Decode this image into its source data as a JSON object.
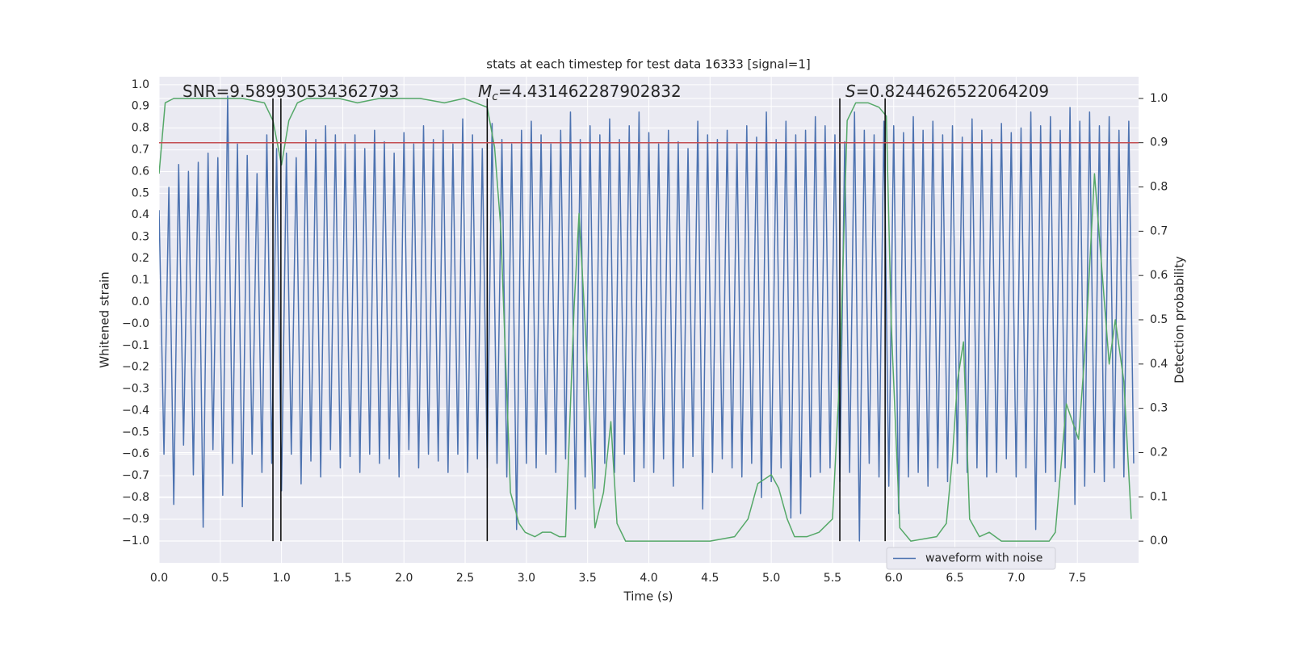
{
  "chart_data": {
    "type": "line",
    "title": "stats at each timestep for test data 16333 [signal=1]",
    "x_label": "Time (s)",
    "y_label": "Whitened strain",
    "y2_label": "Detection probability",
    "annotations": [
      {
        "text": "SNR=9.589930534362793"
      },
      {
        "symbol": "M",
        "subscript": "c",
        "text": "=4.431462287902832"
      },
      {
        "symbol": "S",
        "text": "=0.8244626522064209"
      }
    ],
    "xlim": [
      0,
      8
    ],
    "ylim": [
      -1.096,
      1.035
    ],
    "y2lim": [
      -0.049,
      1.049
    ],
    "xticks": [
      {
        "value": 0,
        "label": "0.0"
      },
      0.5,
      {
        "value": 1,
        "label": "1.0"
      },
      1.5,
      {
        "value": 2,
        "label": "2.0"
      },
      2.5,
      {
        "value": 3,
        "label": "3.0"
      },
      3.5,
      {
        "value": 4,
        "label": "4.0"
      },
      4.5,
      {
        "value": 5,
        "label": "5.0"
      },
      5.5,
      {
        "value": 6,
        "label": "6.0"
      },
      6.5,
      {
        "value": 7,
        "label": "7.0"
      },
      7.5
    ],
    "yticks": [
      {
        "value": -1.0,
        "label": "−1.0"
      },
      {
        "value": -0.905,
        "label": "−0.9"
      },
      {
        "value": -0.81,
        "label": "−0.8"
      },
      {
        "value": -0.714,
        "label": "−0.7"
      },
      {
        "value": -0.619,
        "label": "−0.6"
      },
      {
        "value": -0.524,
        "label": "−0.5"
      },
      {
        "value": -0.429,
        "label": "−0.4"
      },
      {
        "value": -0.333,
        "label": "−0.3"
      },
      {
        "value": -0.238,
        "label": "−0.2"
      },
      {
        "value": -0.143,
        "label": "−0.1"
      },
      {
        "value": -0.048,
        "label": "−0.0"
      },
      {
        "value": 0.048,
        "label": "0.0"
      },
      {
        "value": 0.143,
        "label": "0.1"
      },
      {
        "value": 0.238,
        "label": "0.2"
      },
      {
        "value": 0.333,
        "label": "0.3"
      },
      {
        "value": 0.429,
        "label": "0.4"
      },
      {
        "value": 0.524,
        "label": "0.5"
      },
      {
        "value": 0.619,
        "label": "0.6"
      },
      {
        "value": 0.714,
        "label": "0.7"
      },
      {
        "value": 0.81,
        "label": "0.8"
      },
      {
        "value": 0.905,
        "label": "0.9"
      },
      {
        "value": 1.0,
        "label": "1.0"
      }
    ],
    "y2ticks": [
      {
        "value": 0,
        "label": "0.0"
      },
      0.1,
      0.2,
      0.3,
      0.4,
      0.5,
      0.6,
      0.7,
      0.8,
      0.9,
      {
        "value": 1,
        "label": "1.0"
      }
    ],
    "grid": true,
    "legend": "lower right",
    "series": [
      {
        "name": "waveform with noise",
        "color": "#4c72b0",
        "x": [
          0,
          0.04,
          0.08,
          0.12,
          0.16,
          0.2,
          0.24,
          0.28,
          0.32,
          0.36,
          0.4,
          0.44,
          0.48,
          0.52,
          0.56,
          0.6,
          0.64,
          0.68,
          0.72,
          0.76,
          0.8,
          0.84,
          0.88,
          0.92,
          0.96,
          1,
          1.04,
          1.08,
          1.12,
          1.16,
          1.2,
          1.24,
          1.28,
          1.32,
          1.36,
          1.4,
          1.44,
          1.48,
          1.52,
          1.56,
          1.6,
          1.64,
          1.68,
          1.72,
          1.76,
          1.8,
          1.84,
          1.88,
          1.92,
          1.96,
          2,
          2.04,
          2.08,
          2.12,
          2.16,
          2.2,
          2.24,
          2.28,
          2.32,
          2.36,
          2.4,
          2.44,
          2.48,
          2.52,
          2.56,
          2.6,
          2.64,
          2.68,
          2.72,
          2.76,
          2.8,
          2.84,
          2.88,
          2.92,
          2.96,
          3,
          3.04,
          3.08,
          3.12,
          3.16,
          3.2,
          3.24,
          3.28,
          3.32,
          3.36,
          3.4,
          3.44,
          3.48,
          3.52,
          3.56,
          3.6,
          3.64,
          3.68,
          3.72,
          3.76,
          3.8,
          3.84,
          3.88,
          3.92,
          3.96,
          4,
          4.04,
          4.08,
          4.12,
          4.16,
          4.2,
          4.24,
          4.28,
          4.32,
          4.36,
          4.4,
          4.44,
          4.48,
          4.52,
          4.56,
          4.6,
          4.64,
          4.68,
          4.72,
          4.76,
          4.8,
          4.84,
          4.88,
          4.92,
          4.96,
          5,
          5.04,
          5.08,
          5.12,
          5.16,
          5.2,
          5.24,
          5.28,
          5.32,
          5.36,
          5.4,
          5.44,
          5.48,
          5.52,
          5.56,
          5.6,
          5.64,
          5.68,
          5.72,
          5.76,
          5.8,
          5.84,
          5.88,
          5.92,
          5.96,
          6,
          6.04,
          6.08,
          6.12,
          6.16,
          6.2,
          6.24,
          6.28,
          6.32,
          6.36,
          6.4,
          6.44,
          6.48,
          6.52,
          6.56,
          6.6,
          6.64,
          6.68,
          6.72,
          6.76,
          6.8,
          6.84,
          6.88,
          6.92,
          6.96,
          7,
          7.04,
          7.08,
          7.12,
          7.16,
          7.2,
          7.24,
          7.28,
          7.32,
          7.36,
          7.4,
          7.44,
          7.48,
          7.52,
          7.56,
          7.6,
          7.64,
          7.68,
          7.72,
          7.76,
          7.8,
          7.84,
          7.88,
          7.92,
          7.96
        ],
        "values": [
          0.45,
          -0.62,
          0.55,
          -0.84,
          0.65,
          -0.58,
          0.62,
          -0.71,
          0.66,
          -0.94,
          0.7,
          -0.6,
          0.68,
          -0.8,
          0.95,
          -0.66,
          0.74,
          -0.85,
          0.69,
          -0.62,
          0.61,
          -0.7,
          0.78,
          -0.66,
          0.72,
          -0.78,
          0.7,
          -0.62,
          0.68,
          -0.75,
          0.8,
          -0.65,
          0.76,
          -0.72,
          0.82,
          -0.6,
          0.78,
          -0.68,
          0.74,
          -0.63,
          0.78,
          -0.7,
          0.72,
          -0.62,
          0.8,
          -0.66,
          0.75,
          -0.64,
          0.7,
          -0.72,
          0.79,
          -0.6,
          0.74,
          -0.68,
          0.82,
          -0.62,
          0.76,
          -0.65,
          0.8,
          -0.7,
          0.74,
          -0.62,
          0.85,
          -0.7,
          0.78,
          -0.64,
          0.72,
          -0.68,
          0.83,
          -0.66,
          0.76,
          -0.72,
          0.74,
          -0.95,
          0.8,
          -0.66,
          0.84,
          -0.68,
          0.78,
          -0.62,
          0.74,
          -0.7,
          0.8,
          -0.64,
          0.88,
          -0.86,
          0.76,
          -0.72,
          0.82,
          -0.77,
          0.78,
          -0.66,
          0.85,
          -0.7,
          0.76,
          -0.62,
          0.82,
          -0.74,
          0.88,
          -0.68,
          0.79,
          -0.7,
          0.74,
          -0.64,
          0.8,
          -0.76,
          0.75,
          -0.68,
          0.72,
          -0.63,
          0.84,
          -0.86,
          0.78,
          -0.7,
          0.76,
          -0.64,
          0.8,
          -0.68,
          0.74,
          -0.72,
          0.82,
          -0.66,
          0.77,
          -0.81,
          0.88,
          -0.74,
          0.76,
          -0.68,
          0.84,
          -0.9,
          0.78,
          -0.88,
          0.8,
          -0.72,
          0.86,
          -0.7,
          0.82,
          -0.68,
          0.78,
          -0.74,
          0.75,
          -0.7,
          0.88,
          -1.0,
          0.8,
          -0.66,
          0.78,
          -0.72,
          0.84,
          -0.76,
          0.82,
          -0.88,
          0.79,
          -0.72,
          0.86,
          -0.7,
          0.8,
          -0.76,
          0.84,
          -0.68,
          0.78,
          -0.74,
          0.82,
          -0.66,
          0.77,
          -0.7,
          0.85,
          -0.68,
          0.8,
          -0.72,
          0.76,
          -0.7,
          0.83,
          -0.64,
          0.79,
          -0.72,
          0.81,
          -0.68,
          0.88,
          -0.95,
          0.82,
          -0.7,
          0.86,
          -0.74,
          0.8,
          -0.68,
          0.9,
          -0.84,
          0.84,
          -0.76,
          0.88,
          -0.7,
          0.82,
          -0.74,
          0.86,
          -0.68,
          0.8,
          -0.72,
          0.84,
          -0.66
        ]
      },
      {
        "color": "#55a868",
        "axis": "y2",
        "x": [
          0,
          0.05,
          0.12,
          0.42,
          0.68,
          0.86,
          0.93,
          1.0,
          1.06,
          1.13,
          1.21,
          1.47,
          1.62,
          1.8,
          2.13,
          2.33,
          2.49,
          2.68,
          2.74,
          2.79,
          2.87,
          2.94,
          2.99,
          3.07,
          3.13,
          3.2,
          3.27,
          3.32,
          3.39,
          3.43,
          3.48,
          3.56,
          3.63,
          3.69,
          3.74,
          3.81,
          3.98,
          4.11,
          4.5,
          4.7,
          4.81,
          4.89,
          5.0,
          5.06,
          5.13,
          5.19,
          5.29,
          5.39,
          5.5,
          5.56,
          5.62,
          5.69,
          5.79,
          5.88,
          5.94,
          5.98,
          6.05,
          6.14,
          6.35,
          6.43,
          6.48,
          6.52,
          6.57,
          6.62,
          6.7,
          6.78,
          6.88,
          7.04,
          7.27,
          7.32,
          7.41,
          7.51,
          7.57,
          7.64,
          7.76,
          7.81,
          7.88,
          7.94
        ],
        "values": [
          0.83,
          0.99,
          1.0,
          1.0,
          1.0,
          0.99,
          0.95,
          0.85,
          0.95,
          0.99,
          1.0,
          1.0,
          0.99,
          1.0,
          1.0,
          0.99,
          1.0,
          0.98,
          0.89,
          0.71,
          0.11,
          0.04,
          0.02,
          0.01,
          0.02,
          0.02,
          0.01,
          0.01,
          0.53,
          0.74,
          0.49,
          0.03,
          0.11,
          0.27,
          0.04,
          0.0,
          0.0,
          0.0,
          0.0,
          0.01,
          0.05,
          0.13,
          0.15,
          0.12,
          0.05,
          0.01,
          0.01,
          0.02,
          0.05,
          0.38,
          0.95,
          0.99,
          0.99,
          0.98,
          0.96,
          0.49,
          0.03,
          0.0,
          0.01,
          0.04,
          0.19,
          0.36,
          0.45,
          0.05,
          0.01,
          0.02,
          0.0,
          0.0,
          0.0,
          0.02,
          0.31,
          0.23,
          0.46,
          0.83,
          0.4,
          0.5,
          0.36,
          0.05
        ]
      }
    ],
    "hline": {
      "value": 0.9,
      "axis": "y2",
      "color": "#c44e52"
    },
    "vlines": {
      "x": [
        0.93,
        0.995,
        2.68,
        5.56,
        5.93
      ],
      "ymin": 0,
      "ymax": 1,
      "axis": "y2",
      "color": "#000000"
    }
  }
}
